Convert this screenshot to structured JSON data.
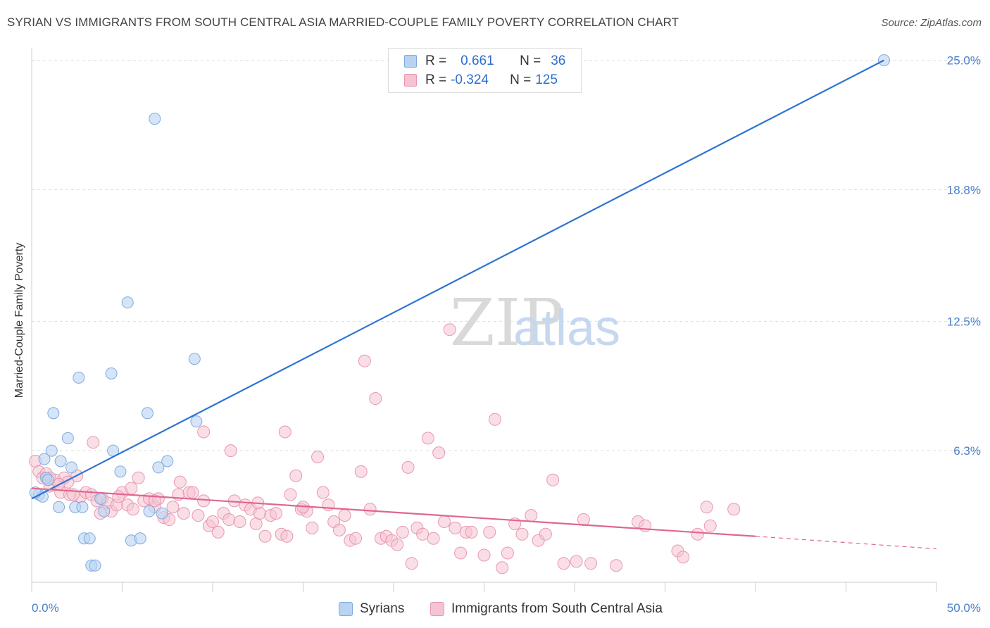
{
  "title": "SYRIAN VS IMMIGRANTS FROM SOUTH CENTRAL ASIA MARRIED-COUPLE FAMILY POVERTY CORRELATION CHART",
  "source": "Source: ZipAtlas.com",
  "watermark": {
    "zip": "ZIP",
    "atlas": "atlas"
  },
  "legend": {
    "rows": [
      {
        "r_label": "R =",
        "r_value": "0.661",
        "n_label": "N =",
        "n_value": "36"
      },
      {
        "r_label": "R =",
        "r_value": "-0.324",
        "n_label": "N =",
        "n_value": "125"
      }
    ]
  },
  "bottom_legend": {
    "series1": "Syrians",
    "series2": "Immigrants from South Central Asia"
  },
  "colors": {
    "blue_fill": "#b9d3f2",
    "blue_stroke": "#7eaae0",
    "blue_line": "#2f74d0",
    "pink_fill": "#f6c3d2",
    "pink_stroke": "#e898b0",
    "pink_line": "#e0668f",
    "tick_text": "#4a7fc8",
    "grid": "#dddddd"
  },
  "chart_data": {
    "type": "scatter",
    "xlabel": "",
    "ylabel": "Married-Couple Family Poverty",
    "xlim": [
      0,
      50
    ],
    "ylim": [
      0,
      26
    ],
    "x_tick_labels": [
      {
        "value": 0,
        "label": "0.0%"
      },
      {
        "value": 50,
        "label": "50.0%"
      }
    ],
    "y_ticks": [
      {
        "value": 6.3,
        "label": "6.3%"
      },
      {
        "value": 12.5,
        "label": "12.5%"
      },
      {
        "value": 18.8,
        "label": "18.8%"
      },
      {
        "value": 25.0,
        "label": "25.0%"
      }
    ],
    "series": [
      {
        "name": "Syrians",
        "r": 0.661,
        "n": 36,
        "trend": {
          "x0": 0,
          "y0": 4.0,
          "x1": 47.1,
          "y1": 25.0
        },
        "points": [
          [
            47.1,
            25.0
          ],
          [
            6.8,
            22.2
          ],
          [
            5.3,
            13.4
          ],
          [
            9.0,
            10.7
          ],
          [
            2.6,
            9.8
          ],
          [
            4.4,
            10.0
          ],
          [
            1.2,
            8.1
          ],
          [
            6.4,
            8.1
          ],
          [
            9.1,
            7.7
          ],
          [
            2.0,
            6.9
          ],
          [
            1.1,
            6.3
          ],
          [
            4.5,
            6.3
          ],
          [
            0.7,
            5.9
          ],
          [
            1.6,
            5.8
          ],
          [
            7.5,
            5.8
          ],
          [
            2.2,
            5.5
          ],
          [
            4.9,
            5.3
          ],
          [
            7.0,
            5.5
          ],
          [
            0.8,
            5.0
          ],
          [
            0.9,
            4.9
          ],
          [
            0.4,
            4.2
          ],
          [
            0.6,
            4.1
          ],
          [
            3.8,
            4.0
          ],
          [
            1.5,
            3.6
          ],
          [
            2.4,
            3.6
          ],
          [
            2.8,
            3.6
          ],
          [
            4.0,
            3.4
          ],
          [
            6.5,
            3.4
          ],
          [
            7.2,
            3.3
          ],
          [
            2.9,
            2.1
          ],
          [
            3.2,
            2.1
          ],
          [
            5.5,
            2.0
          ],
          [
            6.0,
            2.1
          ],
          [
            3.3,
            0.8
          ],
          [
            3.5,
            0.8
          ],
          [
            0.2,
            4.3
          ]
        ]
      },
      {
        "name": "Immigrants from South Central Asia",
        "r": -0.324,
        "n": 125,
        "trend": {
          "x0": 0,
          "y0": 4.5,
          "x1": 40.0,
          "y1": 2.2,
          "dash_x1": 50.0,
          "dash_y1": 1.6
        },
        "points": [
          [
            0.2,
            5.8
          ],
          [
            0.4,
            5.3
          ],
          [
            0.6,
            5.0
          ],
          [
            0.8,
            5.2
          ],
          [
            1.0,
            4.6
          ],
          [
            1.3,
            4.9
          ],
          [
            1.6,
            4.3
          ],
          [
            1.8,
            5.0
          ],
          [
            2.1,
            4.2
          ],
          [
            2.5,
            5.1
          ],
          [
            2.7,
            4.1
          ],
          [
            3.0,
            4.3
          ],
          [
            3.3,
            4.2
          ],
          [
            3.6,
            3.9
          ],
          [
            3.9,
            4.0
          ],
          [
            4.2,
            3.8
          ],
          [
            4.4,
            3.4
          ],
          [
            4.7,
            3.7
          ],
          [
            5.0,
            4.3
          ],
          [
            5.3,
            3.7
          ],
          [
            5.6,
            3.5
          ],
          [
            5.9,
            5.0
          ],
          [
            6.2,
            3.9
          ],
          [
            6.5,
            4.0
          ],
          [
            6.8,
            3.6
          ],
          [
            7.0,
            4.0
          ],
          [
            7.3,
            3.1
          ],
          [
            7.6,
            3.0
          ],
          [
            7.8,
            3.6
          ],
          [
            8.1,
            4.2
          ],
          [
            8.4,
            3.3
          ],
          [
            8.7,
            4.3
          ],
          [
            8.9,
            4.3
          ],
          [
            9.2,
            3.2
          ],
          [
            9.5,
            3.9
          ],
          [
            9.8,
            2.7
          ],
          [
            10.0,
            2.9
          ],
          [
            10.3,
            2.4
          ],
          [
            10.6,
            3.3
          ],
          [
            10.9,
            3.0
          ],
          [
            11.2,
            3.9
          ],
          [
            11.5,
            2.9
          ],
          [
            11.8,
            3.7
          ],
          [
            12.1,
            3.5
          ],
          [
            12.4,
            2.8
          ],
          [
            12.6,
            3.3
          ],
          [
            12.9,
            2.2
          ],
          [
            13.2,
            3.2
          ],
          [
            13.5,
            3.3
          ],
          [
            13.8,
            2.3
          ],
          [
            14.1,
            2.2
          ],
          [
            14.3,
            4.2
          ],
          [
            14.6,
            5.1
          ],
          [
            14.9,
            3.5
          ],
          [
            15.2,
            3.4
          ],
          [
            15.5,
            2.6
          ],
          [
            15.8,
            6.0
          ],
          [
            16.1,
            4.3
          ],
          [
            16.4,
            3.7
          ],
          [
            16.7,
            2.9
          ],
          [
            17.0,
            2.5
          ],
          [
            17.3,
            3.2
          ],
          [
            17.6,
            2.0
          ],
          [
            17.9,
            2.1
          ],
          [
            18.2,
            5.3
          ],
          [
            18.4,
            10.6
          ],
          [
            18.7,
            3.5
          ],
          [
            19.0,
            8.8
          ],
          [
            19.3,
            2.1
          ],
          [
            19.6,
            2.2
          ],
          [
            19.9,
            2.0
          ],
          [
            20.2,
            1.8
          ],
          [
            20.5,
            2.4
          ],
          [
            20.8,
            5.5
          ],
          [
            21.0,
            0.9
          ],
          [
            21.3,
            2.6
          ],
          [
            21.6,
            2.3
          ],
          [
            21.9,
            6.9
          ],
          [
            22.2,
            2.1
          ],
          [
            22.5,
            6.2
          ],
          [
            22.8,
            2.9
          ],
          [
            23.1,
            12.1
          ],
          [
            23.4,
            2.6
          ],
          [
            23.7,
            1.4
          ],
          [
            24.0,
            2.4
          ],
          [
            24.3,
            2.4
          ],
          [
            25.0,
            1.3
          ],
          [
            25.3,
            2.4
          ],
          [
            25.6,
            7.8
          ],
          [
            26.0,
            0.7
          ],
          [
            26.3,
            1.4
          ],
          [
            26.7,
            2.8
          ],
          [
            27.1,
            2.3
          ],
          [
            27.6,
            3.2
          ],
          [
            28.0,
            2.0
          ],
          [
            28.4,
            2.3
          ],
          [
            28.8,
            4.9
          ],
          [
            29.4,
            0.9
          ],
          [
            30.1,
            1.0
          ],
          [
            30.5,
            3.0
          ],
          [
            30.9,
            0.9
          ],
          [
            32.3,
            0.8
          ],
          [
            33.5,
            2.9
          ],
          [
            33.9,
            2.7
          ],
          [
            35.7,
            1.5
          ],
          [
            36.0,
            1.2
          ],
          [
            36.8,
            2.3
          ],
          [
            37.3,
            3.6
          ],
          [
            37.5,
            2.7
          ],
          [
            38.8,
            3.5
          ],
          [
            1.0,
            5.0
          ],
          [
            2.0,
            4.8
          ],
          [
            3.4,
            6.7
          ],
          [
            5.5,
            4.5
          ],
          [
            6.8,
            3.9
          ],
          [
            8.2,
            4.8
          ],
          [
            9.5,
            7.2
          ],
          [
            11.0,
            6.3
          ],
          [
            14.0,
            7.2
          ],
          [
            1.5,
            4.7
          ],
          [
            2.3,
            4.2
          ],
          [
            3.8,
            3.3
          ],
          [
            4.8,
            4.1
          ],
          [
            12.5,
            3.8
          ],
          [
            15.0,
            3.6
          ]
        ]
      }
    ]
  }
}
